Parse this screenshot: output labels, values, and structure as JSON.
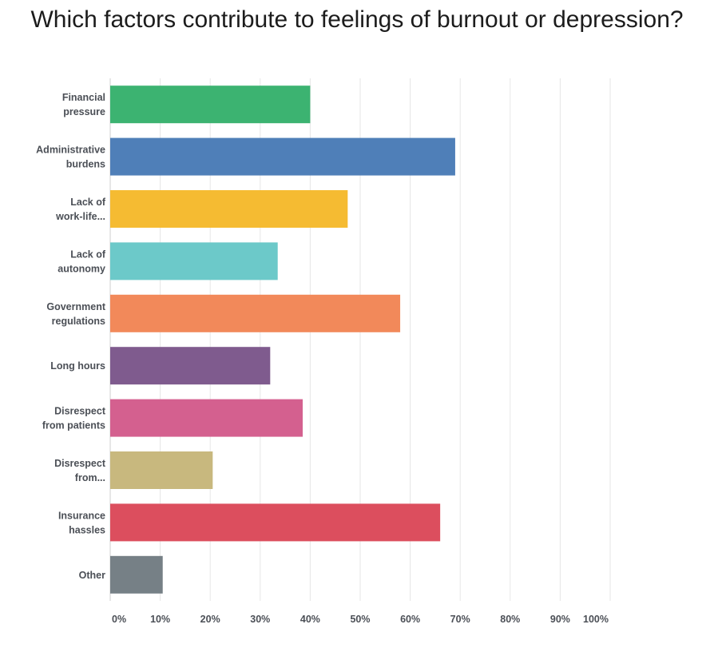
{
  "chart_data": {
    "type": "bar",
    "orientation": "horizontal",
    "title": "Which factors contribute to feelings of burnout or depression?",
    "categories": [
      [
        "Financial",
        "pressure"
      ],
      [
        "Administrative",
        "burdens"
      ],
      [
        "Lack of",
        "work-life..."
      ],
      [
        "Lack of",
        "autonomy"
      ],
      [
        "Government",
        "regulations"
      ],
      [
        "Long hours"
      ],
      [
        "Disrespect",
        "from patients"
      ],
      [
        "Disrespect",
        "from..."
      ],
      [
        "Insurance",
        "hassles"
      ],
      [
        "Other"
      ]
    ],
    "values": [
      40,
      69,
      47.5,
      33.5,
      58,
      32,
      38.5,
      20.5,
      66,
      10.5
    ],
    "colors": [
      "#3cb371",
      "#4f7fb8",
      "#f5bb32",
      "#6cc9c9",
      "#f2895a",
      "#7f5b8e",
      "#d4608f",
      "#c8b87e",
      "#dc4e5e",
      "#768086"
    ],
    "xlim": [
      0,
      100
    ],
    "x_ticks": [
      "0%",
      "10%",
      "20%",
      "30%",
      "40%",
      "50%",
      "60%",
      "70%",
      "80%",
      "90%",
      "100%"
    ],
    "grid": true
  }
}
